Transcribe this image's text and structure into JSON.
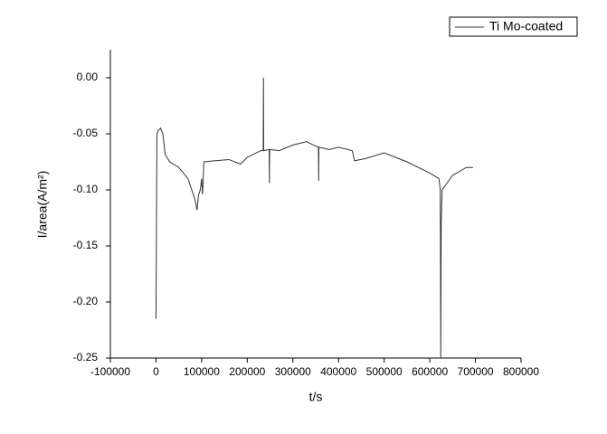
{
  "chart_data": {
    "type": "line",
    "x_label": "t/s",
    "y_label": "I/area(A/m²)",
    "x": [
      0,
      2000,
      5000,
      10000,
      15000,
      20000,
      30000,
      50000,
      70000,
      85000,
      90000,
      93000,
      97000,
      100000,
      102000,
      105000,
      130000,
      160000,
      185000,
      200000,
      230000,
      235000,
      235500,
      236000,
      248000,
      248500,
      249000,
      270000,
      300000,
      330000,
      350000,
      356000,
      356500,
      357000,
      380000,
      400000,
      430000,
      435000,
      460000,
      500000,
      550000,
      600000,
      620000,
      623000,
      624000,
      625000,
      627000,
      650000,
      680000,
      695000
    ],
    "series": [
      {
        "name": "Ti Mo-coated",
        "color": "#333333",
        "values": [
          -0.215,
          -0.05,
          -0.047,
          -0.045,
          -0.05,
          -0.068,
          -0.075,
          -0.08,
          -0.09,
          -0.108,
          -0.118,
          -0.105,
          -0.1,
          -0.09,
          -0.104,
          -0.075,
          -0.074,
          -0.073,
          -0.077,
          -0.071,
          -0.065,
          -0.065,
          0.0,
          -0.065,
          -0.064,
          -0.094,
          -0.064,
          -0.065,
          -0.06,
          -0.057,
          -0.061,
          -0.062,
          -0.092,
          -0.062,
          -0.064,
          -0.062,
          -0.065,
          -0.074,
          -0.072,
          -0.067,
          -0.075,
          -0.085,
          -0.09,
          -0.1,
          -0.25,
          -0.13,
          -0.1,
          -0.087,
          -0.08,
          -0.08
        ]
      }
    ],
    "xlim": [
      -100000,
      800000
    ],
    "xticks": [
      -100000,
      0,
      100000,
      200000,
      300000,
      400000,
      500000,
      600000,
      700000,
      800000
    ],
    "ylim": [
      -0.25,
      0.025
    ],
    "yticks": [
      {
        "value": 0,
        "label": "0.00"
      },
      -0.05,
      {
        "value": -0.1,
        "label": "-0.10"
      },
      -0.15,
      {
        "value": -0.2,
        "label": "-0.20"
      },
      -0.25
    ],
    "legend": "top-right"
  }
}
